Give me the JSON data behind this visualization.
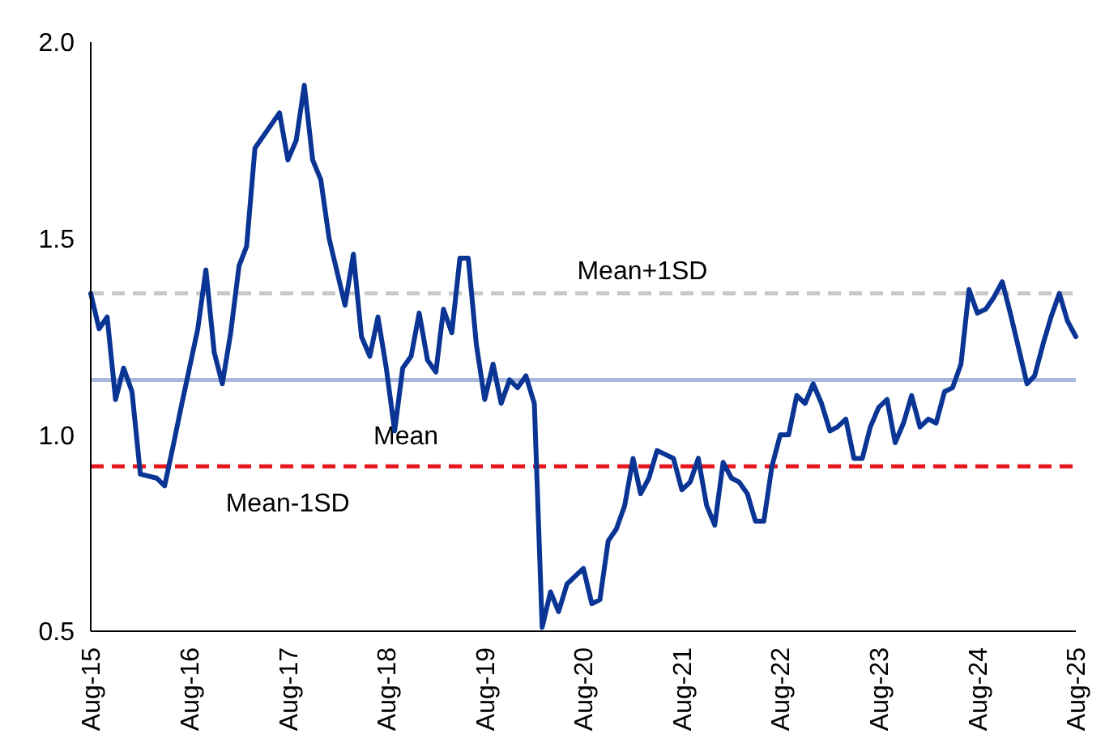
{
  "chart_data": {
    "type": "line",
    "xlim": [
      "2015-08",
      "2025-08"
    ],
    "ylim": [
      0.5,
      2.0
    ],
    "xticks": [
      {
        "value": "2015-08",
        "label": "Aug-15"
      },
      {
        "value": "2016-08",
        "label": "Aug-16"
      },
      {
        "value": "2017-08",
        "label": "Aug-17"
      },
      {
        "value": "2018-08",
        "label": "Aug-18"
      },
      {
        "value": "2019-08",
        "label": "Aug-19"
      },
      {
        "value": "2020-08",
        "label": "Aug-20"
      },
      {
        "value": "2021-08",
        "label": "Aug-21"
      },
      {
        "value": "2022-08",
        "label": "Aug-22"
      },
      {
        "value": "2023-08",
        "label": "Aug-23"
      },
      {
        "value": "2024-08",
        "label": "Aug-24"
      },
      {
        "value": "2025-08",
        "label": "Aug-25"
      }
    ],
    "yticks": [
      {
        "value": 0.5,
        "label": "0.5"
      },
      {
        "value": 1.0,
        "label": "1.0"
      },
      {
        "value": 1.5,
        "label": "1.5"
      },
      {
        "value": 2.0,
        "label": "2.0"
      }
    ],
    "grid": false,
    "marker": "none",
    "line_style": "solid",
    "x": [
      "2015-08",
      "2015-09",
      "2015-10",
      "2015-11",
      "2015-12",
      "2016-01",
      "2016-02",
      "2016-04",
      "2016-05",
      "2016-06",
      "2016-07",
      "2016-08",
      "2016-09",
      "2016-10",
      "2016-11",
      "2016-12",
      "2017-01",
      "2017-02",
      "2017-03",
      "2017-04",
      "2017-07",
      "2017-08",
      "2017-09",
      "2017-10",
      "2017-11",
      "2017-12",
      "2018-01",
      "2018-03",
      "2018-04",
      "2018-05",
      "2018-06",
      "2018-07",
      "2018-08",
      "2018-09",
      "2018-10",
      "2018-11",
      "2018-12",
      "2019-01",
      "2019-02",
      "2019-03",
      "2019-04",
      "2019-05",
      "2019-06",
      "2019-07",
      "2019-08",
      "2019-09",
      "2019-10",
      "2019-11",
      "2019-12",
      "2020-01",
      "2020-02",
      "2020-03",
      "2020-04",
      "2020-05",
      "2020-06",
      "2020-07",
      "2020-08",
      "2020-09",
      "2020-10",
      "2020-11",
      "2020-12",
      "2021-01",
      "2021-02",
      "2021-03",
      "2021-04",
      "2021-05",
      "2021-06",
      "2021-07",
      "2021-08",
      "2021-09",
      "2021-10",
      "2021-11",
      "2021-12",
      "2022-01",
      "2022-02",
      "2022-03",
      "2022-04",
      "2022-05",
      "2022-06",
      "2022-07",
      "2022-08",
      "2022-09",
      "2022-10",
      "2022-11",
      "2022-12",
      "2023-01",
      "2023-02",
      "2023-03",
      "2023-04",
      "2023-05",
      "2023-06",
      "2023-07",
      "2023-08",
      "2023-09",
      "2023-10",
      "2023-11",
      "2023-12",
      "2024-01",
      "2024-02",
      "2024-03",
      "2024-04",
      "2024-05",
      "2024-06",
      "2024-07",
      "2024-08",
      "2024-09",
      "2024-10",
      "2024-11",
      "2024-12",
      "2025-01",
      "2025-02",
      "2025-03",
      "2025-04",
      "2025-05",
      "2025-06",
      "2025-07",
      "2025-08"
    ],
    "series": [
      {
        "color": "#0a3594",
        "values": [
          1.36,
          1.27,
          1.3,
          1.09,
          1.17,
          1.11,
          0.9,
          0.89,
          0.87,
          0.97,
          1.07,
          1.17,
          1.27,
          1.42,
          1.21,
          1.13,
          1.26,
          1.43,
          1.48,
          1.73,
          1.82,
          1.7,
          1.75,
          1.89,
          1.7,
          1.65,
          1.5,
          1.33,
          1.46,
          1.25,
          1.2,
          1.3,
          1.17,
          1.01,
          1.17,
          1.2,
          1.31,
          1.19,
          1.16,
          1.32,
          1.26,
          1.45,
          1.45,
          1.23,
          1.09,
          1.18,
          1.08,
          1.14,
          1.12,
          1.15,
          1.08,
          0.51,
          0.6,
          0.55,
          0.62,
          0.64,
          0.66,
          0.57,
          0.58,
          0.73,
          0.76,
          0.82,
          0.94,
          0.85,
          0.89,
          0.96,
          0.95,
          0.94,
          0.86,
          0.88,
          0.94,
          0.82,
          0.77,
          0.93,
          0.89,
          0.88,
          0.85,
          0.78,
          0.78,
          0.92,
          1.0,
          1.0,
          1.1,
          1.08,
          1.13,
          1.08,
          1.01,
          1.02,
          1.04,
          0.94,
          0.94,
          1.02,
          1.07,
          1.09,
          0.98,
          1.03,
          1.1,
          1.02,
          1.04,
          1.03,
          1.11,
          1.12,
          1.18,
          1.37,
          1.31,
          1.32,
          1.35,
          1.39,
          1.31,
          1.22,
          1.13,
          1.15,
          1.23,
          1.3,
          1.36,
          1.29,
          1.25
        ]
      }
    ],
    "ref_lines": [
      {
        "axis": "y",
        "value": 1.36,
        "label": "Mean+1SD",
        "color": "#c8c8c8",
        "line_style": "dashed"
      },
      {
        "axis": "y",
        "value": 1.14,
        "label": "Mean",
        "color": "#a9b8dc",
        "line_style": "solid"
      },
      {
        "axis": "y",
        "value": 0.92,
        "label": "Mean-1SD",
        "color": "#e8141c",
        "line_style": "dashed"
      }
    ]
  }
}
